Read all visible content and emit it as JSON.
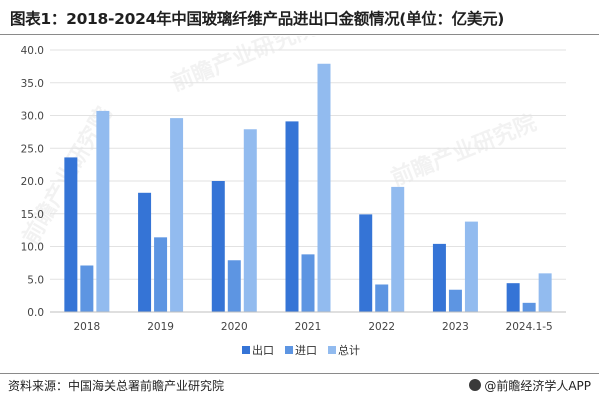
{
  "header": {
    "title": "图表1：2018-2024年中国玻璃纤维产品进出口金额情况(单位：亿美元)"
  },
  "footer": {
    "source": "资料来源：中国海关总署前瞻产业研究院",
    "brand": "@前瞻经济学人APP"
  },
  "watermark": {
    "text": "前瞻产业研究院"
  },
  "colors": {
    "export": "#3574d6",
    "import": "#5d95e2",
    "total": "#92bbef",
    "grid": "#e2e2e2",
    "axis": "#bfbfbf"
  },
  "chart_data": {
    "type": "bar",
    "categories": [
      "2018",
      "2019",
      "2020",
      "2021",
      "2022",
      "2023",
      "2024.1-5"
    ],
    "series": [
      {
        "name": "出口",
        "values": [
          23.6,
          18.2,
          20.0,
          29.1,
          14.9,
          10.4,
          4.4
        ]
      },
      {
        "name": "进口",
        "values": [
          7.1,
          11.4,
          7.9,
          8.8,
          4.2,
          3.4,
          1.4
        ]
      },
      {
        "name": "总计",
        "values": [
          30.7,
          29.6,
          27.9,
          37.9,
          19.1,
          13.8,
          5.9
        ]
      }
    ],
    "ylim": [
      0,
      40
    ],
    "yticks": [
      "0.0",
      "5.0",
      "10.0",
      "15.0",
      "20.0",
      "25.0",
      "30.0",
      "35.0",
      "40.0"
    ],
    "grid": true,
    "legend_position": "bottom"
  }
}
